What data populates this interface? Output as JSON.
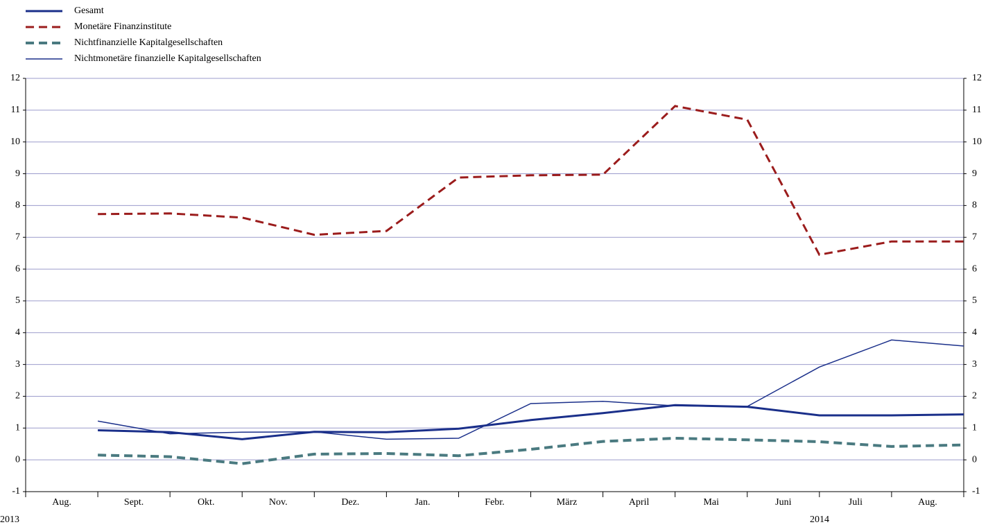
{
  "chart_data": {
    "type": "line",
    "categories": [
      "Aug.",
      "Sept.",
      "Okt.",
      "Nov.",
      "Dez.",
      "Jan.",
      "Febr.",
      "März",
      "April",
      "Mai",
      "Juni",
      "Juli",
      "Aug."
    ],
    "year_labels": [
      "2013",
      "2014"
    ],
    "series": [
      {
        "name": "Gesamt",
        "color": "#1a2f8a",
        "style": "solid",
        "line_width": 3,
        "values": [
          0.93,
          0.87,
          0.65,
          0.88,
          0.87,
          0.98,
          1.25,
          1.47,
          1.72,
          1.67,
          1.4,
          1.4,
          1.43
        ]
      },
      {
        "name": "Monetäre Finanzinstitute",
        "color": "#9b1c1c",
        "style": "dashed",
        "line_width": 3,
        "values": [
          7.73,
          7.75,
          7.62,
          7.08,
          7.2,
          8.88,
          8.95,
          8.97,
          11.13,
          10.7,
          6.45,
          6.87,
          6.87
        ]
      },
      {
        "name": "Nichtfinanzielle Kapitalgesellschaften",
        "color": "#4a7a80",
        "style": "dashed",
        "line_width": 4,
        "values": [
          0.15,
          0.1,
          -0.12,
          0.18,
          0.2,
          0.13,
          0.33,
          0.58,
          0.68,
          0.63,
          0.57,
          0.42,
          0.47
        ]
      },
      {
        "name": "Nichtmonetäre finanzielle Kapitalgesellschaften",
        "color": "#1a2f8a",
        "style": "solid",
        "line_width": 1.5,
        "values": [
          1.22,
          0.82,
          0.87,
          0.88,
          0.65,
          0.68,
          1.77,
          1.84,
          1.7,
          1.68,
          2.92,
          3.77,
          3.58
        ]
      }
    ],
    "ylim": [
      -1,
      12
    ],
    "yticks": [
      -1,
      0,
      1,
      2,
      3,
      4,
      5,
      6,
      7,
      8,
      9,
      10,
      11,
      12
    ],
    "grid": true,
    "legend": "top-left"
  }
}
